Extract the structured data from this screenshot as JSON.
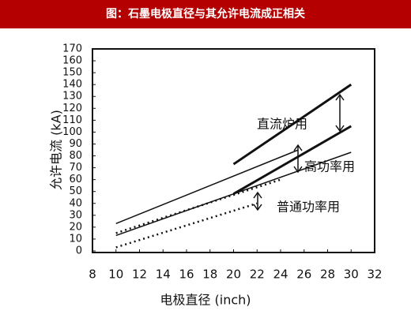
{
  "chart_data": {
    "type": "line",
    "title": "图：石墨电极直径与其允许电流成正相关",
    "x_label": "电极直径 (inch)",
    "y_label": "允许电流 (kA)",
    "annotations": [
      "直流炉用",
      "高功率用",
      "普通功率用"
    ],
    "xlim": [
      8,
      32
    ],
    "xticks": [
      8,
      10,
      12,
      14,
      16,
      18,
      20,
      22,
      24,
      26,
      28,
      30,
      32
    ],
    "ylim": [
      0,
      170
    ],
    "yticks": [
      0,
      10,
      20,
      30,
      40,
      50,
      60,
      70,
      80,
      90,
      100,
      110,
      120,
      130,
      140,
      150,
      160,
      170
    ],
    "series": [
      {
        "color": "#111111",
        "style": "thin",
        "x": [
          10,
          25.5
        ],
        "values": [
          23,
          85
        ]
      },
      {
        "color": "#111111",
        "style": "thick",
        "x": [
          20,
          30
        ],
        "values": [
          73,
          140
        ]
      },
      {
        "color": "#111111",
        "style": "thick",
        "x": [
          20,
          30
        ],
        "values": [
          48,
          105
        ]
      },
      {
        "color": "#111111",
        "style": "thin",
        "x": [
          10,
          30
        ],
        "values": [
          13,
          83
        ]
      },
      {
        "color": "#111111",
        "style": "dotted",
        "x": [
          10,
          24
        ],
        "values": [
          15,
          60
        ]
      },
      {
        "color": "#111111",
        "style": "dotted",
        "x": [
          10,
          22
        ],
        "values": [
          3,
          40
        ]
      }
    ]
  }
}
